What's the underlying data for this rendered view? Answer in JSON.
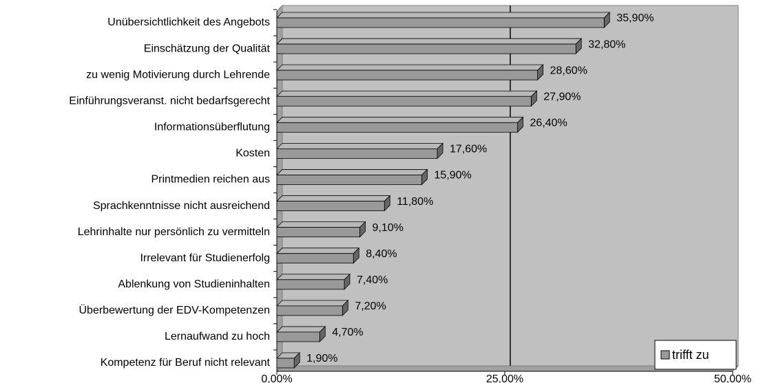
{
  "chart_data": {
    "type": "bar",
    "orientation": "horizontal",
    "categories": [
      "Unübersichtlichkeit des Angebots",
      "Einschätzung der Qualität",
      "zu wenig Motivierung durch Lehrende",
      "Einführungsveranst. nicht bedarfsgerecht",
      "Informationsüberflutung",
      "Kosten",
      "Printmedien reichen aus",
      "Sprachkenntnisse nicht ausreichend",
      "Lehrinhalte nur persönlich zu vermitteln",
      "Irrelevant für Studienerfolg",
      "Ablenkung von Studieninhalten",
      "Überbewertung der EDV-Kompetenzen",
      "Lernaufwand zu hoch",
      "Kompetenz für Beruf nicht relevant"
    ],
    "series": [
      {
        "name": "trifft zu",
        "color": "#999999",
        "values": [
          35.9,
          32.8,
          28.6,
          27.9,
          26.4,
          17.6,
          15.9,
          11.8,
          9.1,
          8.4,
          7.4,
          7.2,
          4.7,
          1.9
        ],
        "value_labels": [
          "35,90%",
          "32,80%",
          "28,60%",
          "27,90%",
          "26,40%",
          "17,60%",
          "15,90%",
          "11,80%",
          "9,10%",
          "8,40%",
          "7,40%",
          "7,20%",
          "4,70%",
          "1,90%"
        ]
      }
    ],
    "xlim": [
      0,
      50
    ],
    "xticks": [
      {
        "value": 0,
        "label": "0,00%"
      },
      {
        "value": 25,
        "label": "25,00%"
      },
      {
        "value": 50,
        "label": "50,00%"
      }
    ],
    "grid": true,
    "legend": "bottom-right"
  }
}
